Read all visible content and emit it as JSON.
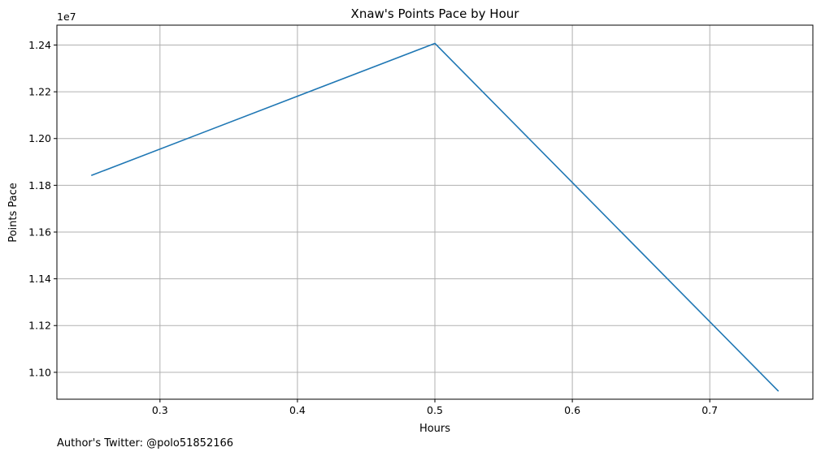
{
  "chart_data": {
    "type": "line",
    "title": "Xnaw's Points Pace by Hour",
    "xlabel": "Hours",
    "ylabel": "Points Pace",
    "y_offset_text": "1e7",
    "xlim": [
      0.225,
      0.775
    ],
    "ylim": [
      1.0885,
      1.2485
    ],
    "x_ticks": [
      0.3,
      0.4,
      0.5,
      0.6,
      0.7
    ],
    "x_tick_labels": [
      "0.3",
      "0.4",
      "0.5",
      "0.6",
      "0.7"
    ],
    "y_ticks": [
      1.1,
      1.12,
      1.14,
      1.16,
      1.18,
      1.2,
      1.22,
      1.24
    ],
    "y_tick_labels": [
      "1.10",
      "1.12",
      "1.14",
      "1.16",
      "1.18",
      "1.20",
      "1.22",
      "1.24"
    ],
    "grid": true,
    "series": [
      {
        "color": "#1f77b4",
        "x": [
          0.25,
          0.5,
          0.75
        ],
        "y": [
          1.1842,
          1.2407,
          1.0919
        ]
      }
    ]
  },
  "footnote": "Author's Twitter: @polo51852166"
}
